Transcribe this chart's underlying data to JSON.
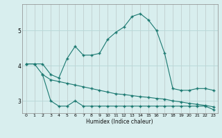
{
  "xlabel": "Humidex (Indice chaleur)",
  "background_color": "#d8eeee",
  "grid_color": "#b8d8d8",
  "line_color": "#1a7870",
  "ylim": [
    2.65,
    5.75
  ],
  "xlim": [
    -0.5,
    23.5
  ],
  "yticks": [
    3,
    4,
    5
  ],
  "xticks": [
    0,
    1,
    2,
    3,
    4,
    5,
    6,
    7,
    8,
    9,
    10,
    11,
    12,
    13,
    14,
    15,
    16,
    17,
    18,
    19,
    20,
    21,
    22,
    23
  ],
  "line1_x": [
    0,
    1,
    2,
    3,
    4,
    5,
    6,
    7,
    8,
    9,
    10,
    11,
    12,
    13,
    14,
    15,
    16,
    17,
    18,
    19,
    20,
    21,
    22,
    23
  ],
  "line1_y": [
    4.05,
    4.05,
    4.05,
    3.75,
    3.65,
    4.2,
    4.55,
    4.3,
    4.3,
    4.35,
    4.75,
    4.95,
    5.1,
    5.4,
    5.48,
    5.3,
    5.0,
    4.35,
    3.35,
    3.3,
    3.3,
    3.35,
    3.35,
    3.3
  ],
  "line2_x": [
    2,
    3,
    4,
    5,
    6,
    7,
    8,
    9,
    10,
    11,
    12,
    13,
    14,
    15,
    16,
    17,
    18,
    19,
    20,
    21,
    22,
    23
  ],
  "line2_y": [
    3.75,
    3.0,
    2.85,
    2.85,
    3.0,
    2.85,
    2.85,
    2.85,
    2.85,
    2.85,
    2.85,
    2.85,
    2.85,
    2.85,
    2.85,
    2.85,
    2.85,
    2.85,
    2.85,
    2.85,
    2.85,
    2.75
  ],
  "line3_x": [
    0,
    1,
    2,
    3,
    4,
    5,
    6,
    7,
    8,
    9,
    10,
    11,
    12,
    13,
    14,
    15,
    16,
    17,
    18,
    19,
    20,
    21,
    22,
    23
  ],
  "line3_y": [
    4.05,
    4.05,
    3.75,
    3.6,
    3.55,
    3.5,
    3.45,
    3.4,
    3.35,
    3.3,
    3.25,
    3.2,
    3.18,
    3.15,
    3.12,
    3.1,
    3.07,
    3.05,
    3.0,
    2.97,
    2.93,
    2.9,
    2.87,
    2.83
  ]
}
